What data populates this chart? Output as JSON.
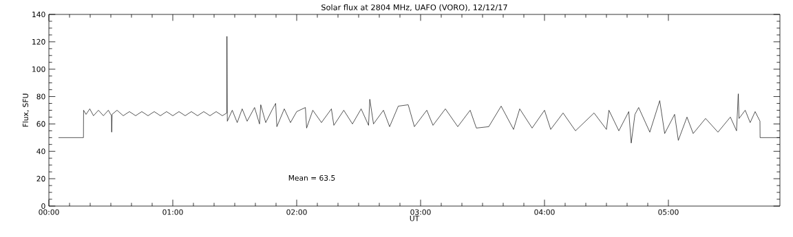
{
  "chart_data": {
    "type": "line",
    "title": "Solar flux at 2804 MHz, UAFO (VORO),  12/12/17",
    "xlabel": "UT",
    "ylabel": "Flux, SFU",
    "annotations": [
      "Mean =   63.5"
    ],
    "x": [
      0.077,
      0.279,
      0.28,
      0.3,
      0.33,
      0.36,
      0.4,
      0.44,
      0.48,
      0.505,
      0.507,
      0.51,
      0.55,
      0.6,
      0.65,
      0.7,
      0.75,
      0.8,
      0.85,
      0.9,
      0.95,
      1.0,
      1.05,
      1.1,
      1.15,
      1.2,
      1.25,
      1.3,
      1.35,
      1.4,
      1.436,
      1.437,
      1.44,
      1.48,
      1.52,
      1.56,
      1.6,
      1.66,
      1.7,
      1.71,
      1.75,
      1.8,
      1.83,
      1.84,
      1.9,
      1.95,
      2.0,
      2.07,
      2.08,
      2.13,
      2.2,
      2.28,
      2.3,
      2.38,
      2.45,
      2.52,
      2.58,
      2.59,
      2.62,
      2.7,
      2.75,
      2.82,
      2.9,
      2.95,
      3.05,
      3.1,
      3.2,
      3.3,
      3.4,
      3.45,
      3.55,
      3.65,
      3.75,
      3.8,
      3.9,
      4.0,
      4.05,
      4.15,
      4.25,
      4.4,
      4.5,
      4.52,
      4.6,
      4.68,
      4.7,
      4.73,
      4.76,
      4.85,
      4.93,
      4.97,
      5.05,
      5.08,
      5.15,
      5.2,
      5.3,
      5.4,
      5.5,
      5.55,
      5.564,
      5.57,
      5.62,
      5.66,
      5.7,
      5.739,
      5.74,
      5.9
    ],
    "values": [
      50,
      50,
      70,
      67,
      71,
      66,
      70,
      66,
      70,
      66,
      54,
      67,
      70,
      66,
      69,
      66,
      69,
      66,
      69,
      66,
      69,
      66,
      69,
      66,
      69,
      66,
      69,
      66,
      69,
      66,
      68,
      124,
      62,
      70,
      61,
      71,
      62,
      72,
      60,
      74,
      61,
      70,
      75,
      58,
      71,
      61,
      69,
      72,
      57,
      70,
      61,
      71,
      59,
      70,
      60,
      71,
      59,
      78,
      60,
      70,
      58,
      73,
      74,
      58,
      70,
      59,
      71,
      58,
      70,
      57,
      58,
      73,
      56,
      71,
      57,
      70,
      56,
      68,
      55,
      68,
      56,
      70,
      55,
      69,
      46,
      67,
      72,
      54,
      77,
      53,
      67,
      48,
      65,
      53,
      64,
      54,
      65,
      55,
      82,
      64,
      70,
      61,
      69,
      62,
      50,
      50
    ],
    "color": "#000000",
    "marker": "none",
    "line_style": "solid",
    "xlim": [
      0,
      5.9
    ],
    "ylim": [
      0,
      140
    ],
    "xticks": [
      {
        "value": 0,
        "label": "00:00"
      },
      {
        "value": 1,
        "label": "01:00"
      },
      {
        "value": 2,
        "label": "02:00"
      },
      {
        "value": 3,
        "label": "03:00"
      },
      {
        "value": 4,
        "label": "04:00"
      },
      {
        "value": 5,
        "label": "05:00"
      }
    ],
    "yticks": [
      0,
      20,
      40,
      60,
      80,
      100,
      120,
      140
    ]
  }
}
